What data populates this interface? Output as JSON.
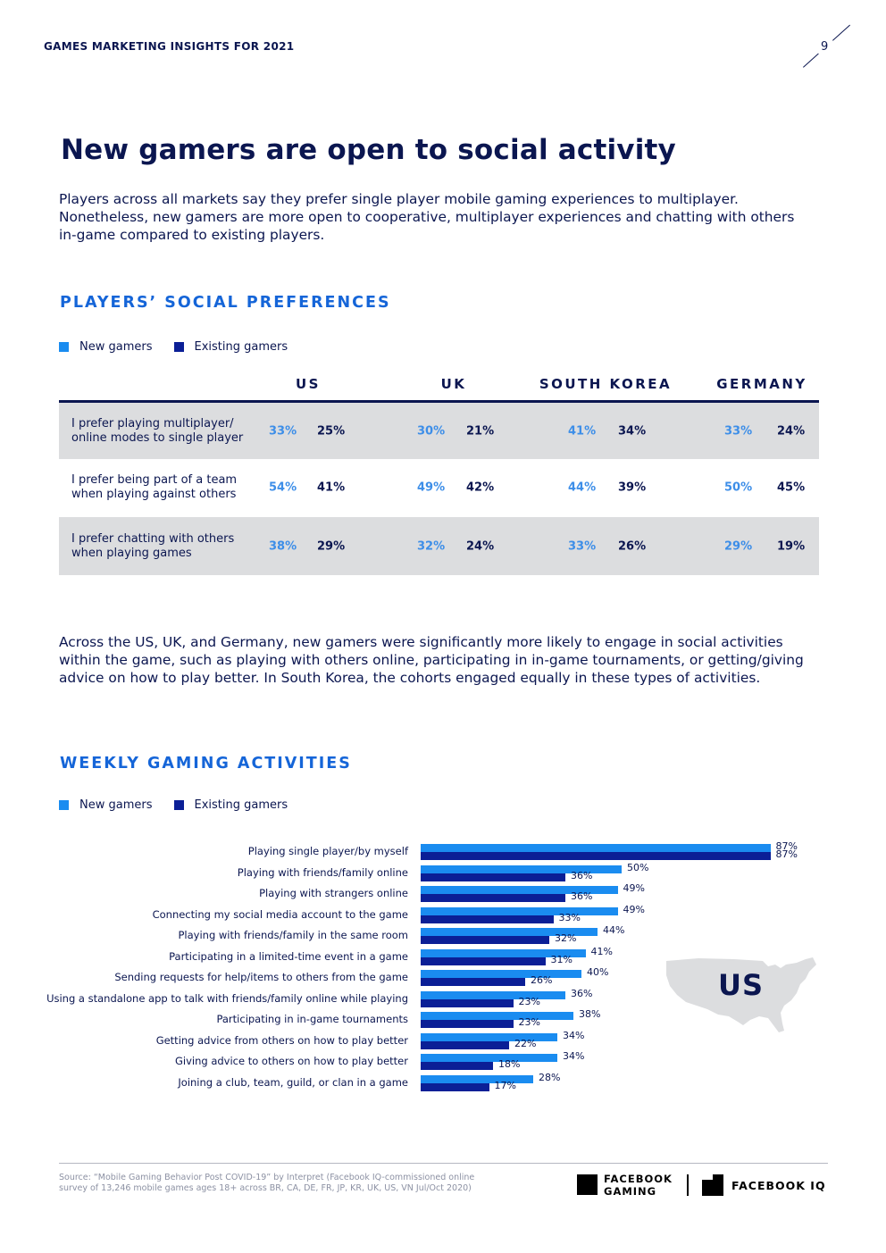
{
  "header": {
    "title": "GAMES MARKETING INSIGHTS FOR 2021",
    "page_number": "9"
  },
  "page_title": "New gamers are open to social activity",
  "intro_paragraph": "Players across all markets say they prefer single player mobile gaming experiences to multiplayer. Nonetheless, new gamers are more open to cooperative, multiplayer experiences and chatting with others in-game compared to existing players.",
  "colors": {
    "new_gamers": "#1a8cf0",
    "existing_gamers": "#0b1f96",
    "heading_blue": "#1565d8",
    "navy": "#0b1650"
  },
  "social_preferences": {
    "heading": "PLAYERS’ SOCIAL PREFERENCES",
    "legend": {
      "new": "New gamers",
      "existing": "Existing gamers"
    },
    "columns": [
      "US",
      "UK",
      "SOUTH KOREA",
      "GERMANY"
    ],
    "rows": [
      {
        "label": "I prefer playing multiplayer/ online modes to single player",
        "values": [
          [
            "33%",
            "25%"
          ],
          [
            "30%",
            "21%"
          ],
          [
            "41%",
            "34%"
          ],
          [
            "33%",
            "24%"
          ]
        ]
      },
      {
        "label": "I prefer being part of a team when playing against others",
        "values": [
          [
            "54%",
            "41%"
          ],
          [
            "49%",
            "42%"
          ],
          [
            "44%",
            "39%"
          ],
          [
            "50%",
            "45%"
          ]
        ]
      },
      {
        "label": "I prefer chatting with others when playing games",
        "values": [
          [
            "38%",
            "29%"
          ],
          [
            "32%",
            "24%"
          ],
          [
            "33%",
            "26%"
          ],
          [
            "29%",
            "19%"
          ]
        ]
      }
    ]
  },
  "middle_paragraph": "Across the US, UK, and Germany, new gamers were significantly more likely to engage in social activities within the game, such as playing with others online, participating in in-game tournaments, or getting/giving advice on how to play better. In South Korea, the cohorts engaged equally in these types of activities.",
  "weekly_activities": {
    "heading": "WEEKLY GAMING ACTIVITIES",
    "legend": {
      "new": "New gamers",
      "existing": "Existing gamers"
    },
    "map_label": "US"
  },
  "chart_data": {
    "type": "bar",
    "orientation": "horizontal",
    "title": "WEEKLY GAMING ACTIVITIES",
    "region": "US",
    "unit": "%",
    "categories": [
      "Playing single player/by myself",
      "Playing with friends/family online",
      "Playing with strangers online",
      "Connecting my social media account to the game",
      "Playing with friends/family in the same room",
      "Participating in a limited-time event in a game",
      "Sending requests for help/items to others from the game",
      "Using a standalone app to talk with friends/family online while playing",
      "Participating in in-game tournaments",
      "Getting advice from others on how to play better",
      "Giving advice to others on how to play better",
      "Joining a club, team, guild, or clan in a game"
    ],
    "series": [
      {
        "name": "New gamers",
        "values": [
          87,
          50,
          49,
          49,
          44,
          41,
          40,
          36,
          38,
          34,
          34,
          28
        ]
      },
      {
        "name": "Existing gamers",
        "values": [
          87,
          36,
          36,
          33,
          32,
          31,
          26,
          23,
          23,
          22,
          18,
          17
        ]
      }
    ],
    "xlim": [
      0,
      100
    ],
    "grid": false,
    "legend": "top-left"
  },
  "footer": {
    "source": "Source: “Mobile Gaming Behavior Post COVID-19” by Interpret (Facebook IQ-commissioned online survey of 13,246 mobile games ages 18+ across BR, CA, DE, FR, JP, KR, UK, US, VN Jul/Oct 2020)",
    "logo_gaming_line1": "FACEBOOK",
    "logo_gaming_line2": "GAMING",
    "logo_iq": "FACEBOOK IQ"
  }
}
